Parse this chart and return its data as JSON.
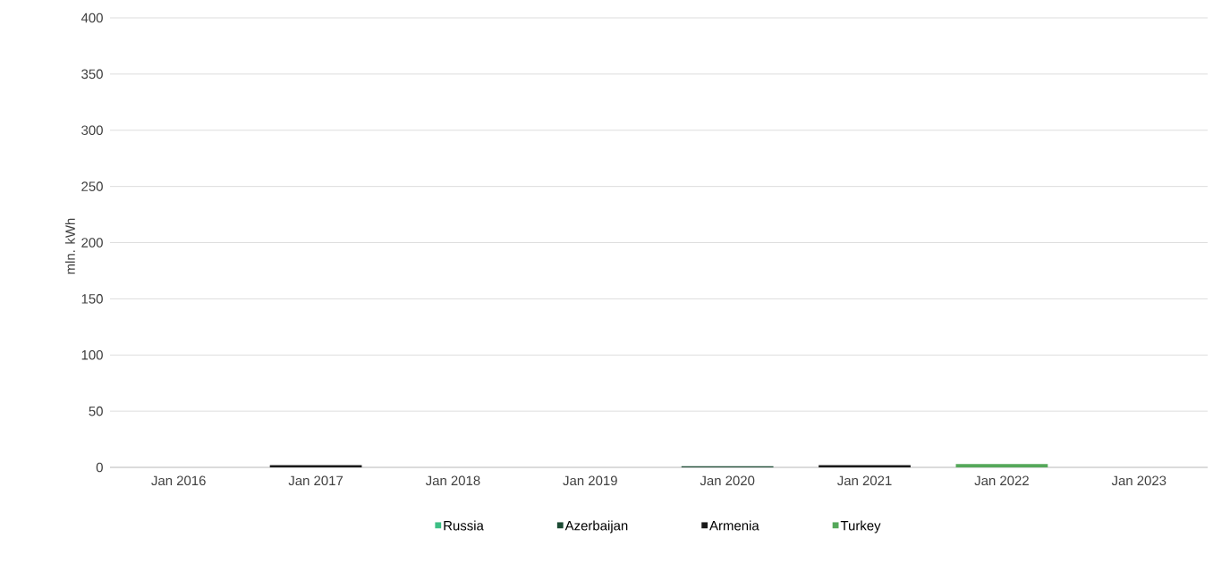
{
  "chart_data": {
    "type": "bar",
    "stacked": true,
    "ylabel": "mln. kWh",
    "categories": [
      "Jan 2016",
      "Jan 2017",
      "Jan 2018",
      "Jan 2019",
      "Jan 2020",
      "Jan 2021",
      "Jan 2022",
      "Jan 2023"
    ],
    "series": [
      {
        "name": "Russia",
        "color": "#3dbf85",
        "values": [
          0,
          0,
          0,
          0,
          0,
          0,
          0,
          0
        ]
      },
      {
        "name": "Azerbaijan",
        "color": "#1b4a33",
        "values": [
          0,
          0,
          0,
          0,
          1,
          0,
          0,
          0
        ]
      },
      {
        "name": "Armenia",
        "color": "#1a1a1a",
        "values": [
          0,
          2,
          0,
          0,
          0,
          2,
          0,
          0
        ]
      },
      {
        "name": "Turkey",
        "color": "#55a85a",
        "values": [
          0,
          0,
          0,
          0,
          0,
          0,
          3,
          0
        ]
      }
    ],
    "ylim": [
      0,
      400
    ],
    "yticks": [
      0,
      50,
      100,
      150,
      200,
      250,
      300,
      350,
      400
    ],
    "grid": "y",
    "legend": "bottom"
  }
}
